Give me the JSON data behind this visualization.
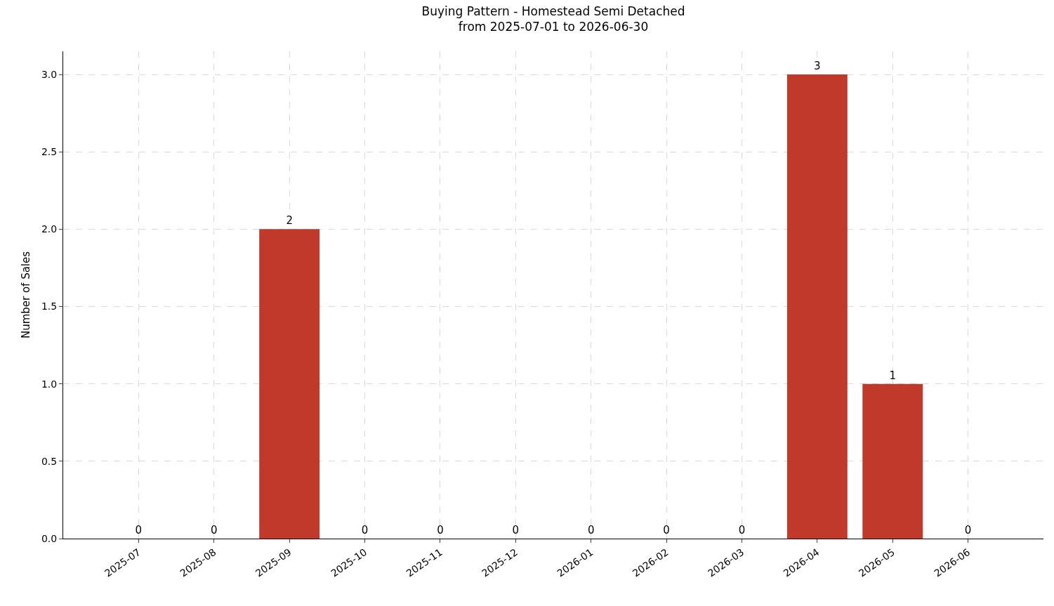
{
  "chart_data": {
    "type": "bar",
    "title": "Buying Pattern - Homestead Semi Detached\nfrom 2025-07-01 to 2026-06-30",
    "ylabel": "Number of Sales",
    "categories": [
      "2025-07",
      "2025-08",
      "2025-09",
      "2025-10",
      "2025-11",
      "2025-12",
      "2026-01",
      "2026-02",
      "2026-03",
      "2026-04",
      "2026-05",
      "2026-06"
    ],
    "values": [
      0,
      0,
      2,
      0,
      0,
      0,
      0,
      0,
      0,
      3,
      1,
      0
    ],
    "color": "#c0392b",
    "ylim": [
      0,
      3.15
    ],
    "yticks": [
      {
        "value": 0,
        "label": "0.0"
      },
      {
        "value": 0.5,
        "label": "0.5"
      },
      {
        "value": 1,
        "label": "1.0"
      },
      {
        "value": 1.5,
        "label": "1.5"
      },
      {
        "value": 2,
        "label": "2.0"
      },
      {
        "value": 2.5,
        "label": "2.5"
      },
      {
        "value": 3,
        "label": "3.0"
      }
    ],
    "grid": true,
    "data_labels": true
  }
}
